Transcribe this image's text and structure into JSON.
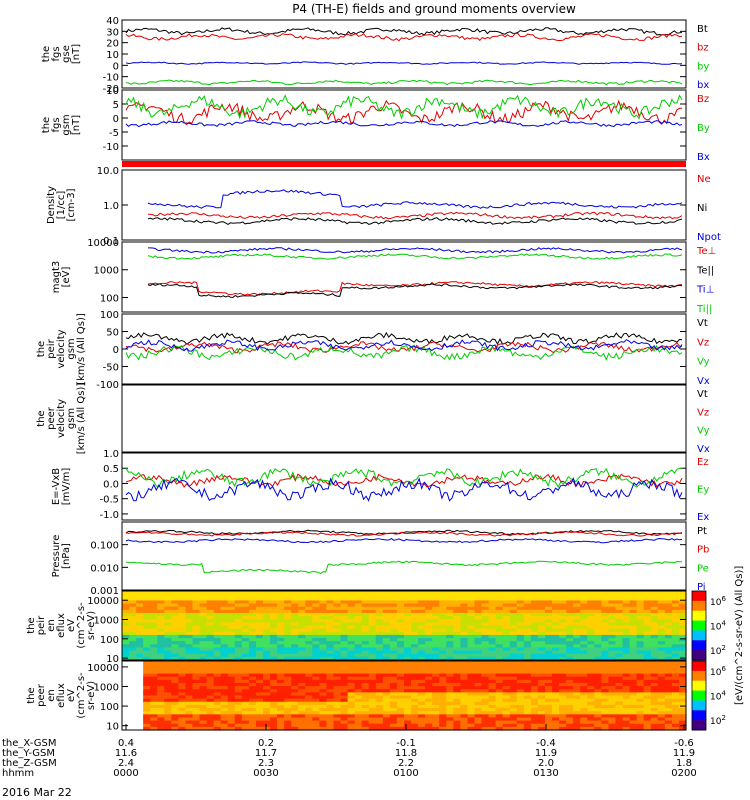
{
  "title": "P4 (TH-E) fields and ground moments overview",
  "date_label": "2016 Mar 22",
  "orbit": {
    "rows": [
      {
        "label": "the_X-GSM",
        "values": [
          "0.4",
          "0.2",
          "-0.1",
          "-0.4",
          "-0.6"
        ]
      },
      {
        "label": "the_Y-GSM",
        "values": [
          "11.6",
          "11.7",
          "11.8",
          "11.9",
          "11.9"
        ]
      },
      {
        "label": "the_Z-GSM",
        "values": [
          "2.4",
          "2.3",
          "2.2",
          "2.0",
          "1.8"
        ]
      },
      {
        "label": "hhmm",
        "values": [
          "0000",
          "0030",
          "0100",
          "0130",
          "0200"
        ]
      }
    ]
  },
  "colorbar_labels": {
    "flux_unit": "eV/(cm^2-s-sr-eV)",
    "upper_ticks": [
      "10^6",
      "10^4",
      "10^2"
    ],
    "lower_ticks": [
      "10^6",
      "10^4",
      "10^2"
    ],
    "axis_label": "[eV/(cm^2-s-sr-eV) (All Qs)]"
  },
  "colors": {
    "black": "#000000",
    "red": "#e00000",
    "green": "#00cc00",
    "blue": "#0000dd"
  },
  "chart_data": [
    {
      "type": "line",
      "id": "fgs",
      "ylabel": [
        "the",
        "fgs",
        "gse",
        "[nT]"
      ],
      "ylim": [
        -20,
        40
      ],
      "yticks": [
        -20,
        -10,
        0,
        10,
        20,
        30,
        40
      ],
      "xlim": [
        "00:00",
        "02:00"
      ],
      "series": [
        {
          "name": "Bt",
          "color": "#000000",
          "level": 30,
          "var": 3
        },
        {
          "name": "bz",
          "color": "#e00000",
          "level": 25,
          "var": 3
        },
        {
          "name": "by",
          "color": "#00cc00",
          "level": -15,
          "var": 2
        },
        {
          "name": "bx",
          "color": "#0000dd",
          "level": 2,
          "var": 1
        }
      ]
    },
    {
      "type": "line",
      "id": "fgs_gsm",
      "ylabel": [
        "the",
        "fgs",
        "gsm",
        "[nT]"
      ],
      "ylim": [
        -15,
        10
      ],
      "yticks": [
        -10,
        -5,
        0,
        5,
        10
      ],
      "series": [
        {
          "name": "Bz",
          "color": "#e00000",
          "level": 2,
          "var": 4
        },
        {
          "name": "By",
          "color": "#00cc00",
          "level": 4,
          "var": 4
        },
        {
          "name": "Bx",
          "color": "#0000dd",
          "level": -2,
          "var": 1
        }
      ]
    },
    {
      "type": "line",
      "id": "density",
      "scale": "log",
      "ylabel": [
        "Density",
        "[1/cc]",
        "[cm-3]"
      ],
      "ylim": [
        0.1,
        10
      ],
      "ytick_labels": [
        "0.1",
        "1.0",
        "10.0"
      ],
      "series": [
        {
          "name": "Ne",
          "color": "#e00000",
          "level": 0.5
        },
        {
          "name": "Ni",
          "color": "#000000",
          "level": 0.35
        },
        {
          "name": "Npot",
          "color": "#0000dd",
          "level": 1.0
        }
      ]
    },
    {
      "type": "line",
      "id": "temperature",
      "scale": "log",
      "ylabel": [
        "magt3",
        "[eV]"
      ],
      "ylim": [
        30,
        10000
      ],
      "ytick_labels": [
        "100",
        "1000",
        "10000"
      ],
      "series": [
        {
          "name": "Te⊥",
          "color": "#e00000",
          "level": 300
        },
        {
          "name": "Te||",
          "color": "#000000",
          "level": 250
        },
        {
          "name": "Ti⊥",
          "color": "#0000dd",
          "level": 5000
        },
        {
          "name": "Ti||",
          "color": "#00cc00",
          "level": 3000
        }
      ]
    },
    {
      "type": "line",
      "id": "peir_velocity",
      "ylabel": [
        "the",
        "peir",
        "velocity",
        "gsm",
        "[km/s (All Qs)]"
      ],
      "ylim": [
        -100,
        100
      ],
      "yticks": [
        -100,
        -50,
        0,
        50,
        100
      ],
      "series": [
        {
          "name": "Vt",
          "color": "#000000",
          "level": 30,
          "var": 15
        },
        {
          "name": "Vz",
          "color": "#e00000",
          "level": 5,
          "var": 15
        },
        {
          "name": "Vy",
          "color": "#00cc00",
          "level": -10,
          "var": 20
        },
        {
          "name": "Vx",
          "color": "#0000dd",
          "level": 10,
          "var": 15
        }
      ]
    },
    {
      "type": "line",
      "id": "peer_velocity",
      "ylabel": [
        "the",
        "peer",
        "velocity",
        "gsm",
        "[km/s (All Qs)]"
      ],
      "series": [
        {
          "name": "Vt",
          "color": "#000000"
        },
        {
          "name": "Vz",
          "color": "#e00000"
        },
        {
          "name": "Vy",
          "color": "#00cc00"
        },
        {
          "name": "Vx",
          "color": "#0000dd"
        }
      ]
    },
    {
      "type": "line",
      "id": "efield",
      "ylabel": [
        "E=-VxB",
        "[mV/m]"
      ],
      "ylim": [
        -1.2,
        1.0
      ],
      "yticks": [
        -1.0,
        -0.5,
        0,
        0.5,
        1.0
      ],
      "ytick_labels": [
        "-1.0",
        "-0.5",
        "0.0",
        "0.5",
        "1.0"
      ],
      "series": [
        {
          "name": "Ez",
          "color": "#e00000",
          "level": 0.1,
          "var": 0.2
        },
        {
          "name": "Ey",
          "color": "#00cc00",
          "level": 0.2,
          "var": 0.3
        },
        {
          "name": "Ex",
          "color": "#0000dd",
          "level": -0.2,
          "var": 0.35
        }
      ]
    },
    {
      "type": "line",
      "id": "pressure",
      "scale": "log",
      "ylabel": [
        "Pressure",
        "[nPa]"
      ],
      "ylim": [
        0.001,
        1
      ],
      "ytick_labels": [
        "0.001",
        "0.010",
        "0.100"
      ],
      "series": [
        {
          "name": "Pt",
          "color": "#000000",
          "level": 0.35
        },
        {
          "name": "Pb",
          "color": "#e00000",
          "level": 0.3
        },
        {
          "name": "Pe",
          "color": "#00cc00",
          "level": 0.015
        },
        {
          "name": "Pi",
          "color": "#0000dd",
          "level": 0.15
        }
      ]
    },
    {
      "type": "heatmap",
      "id": "peir_eflux",
      "scale": "log",
      "ylabel": [
        "the",
        "peir",
        "en",
        "eflux",
        "eV",
        "(cm^2-s-",
        "sr-eV)"
      ],
      "ylim": [
        8,
        30000
      ],
      "ytick_labels": [
        "10",
        "100",
        "1000",
        "10000"
      ]
    },
    {
      "type": "heatmap",
      "id": "peer_eflux",
      "scale": "log",
      "ylabel": [
        "the",
        "peer",
        "en",
        "eflux",
        "eV",
        "(cm^2-s-",
        "sr-eV)"
      ],
      "ylim": [
        6,
        20000
      ],
      "ytick_labels": [
        "10",
        "100",
        "1000",
        "10000"
      ]
    }
  ]
}
